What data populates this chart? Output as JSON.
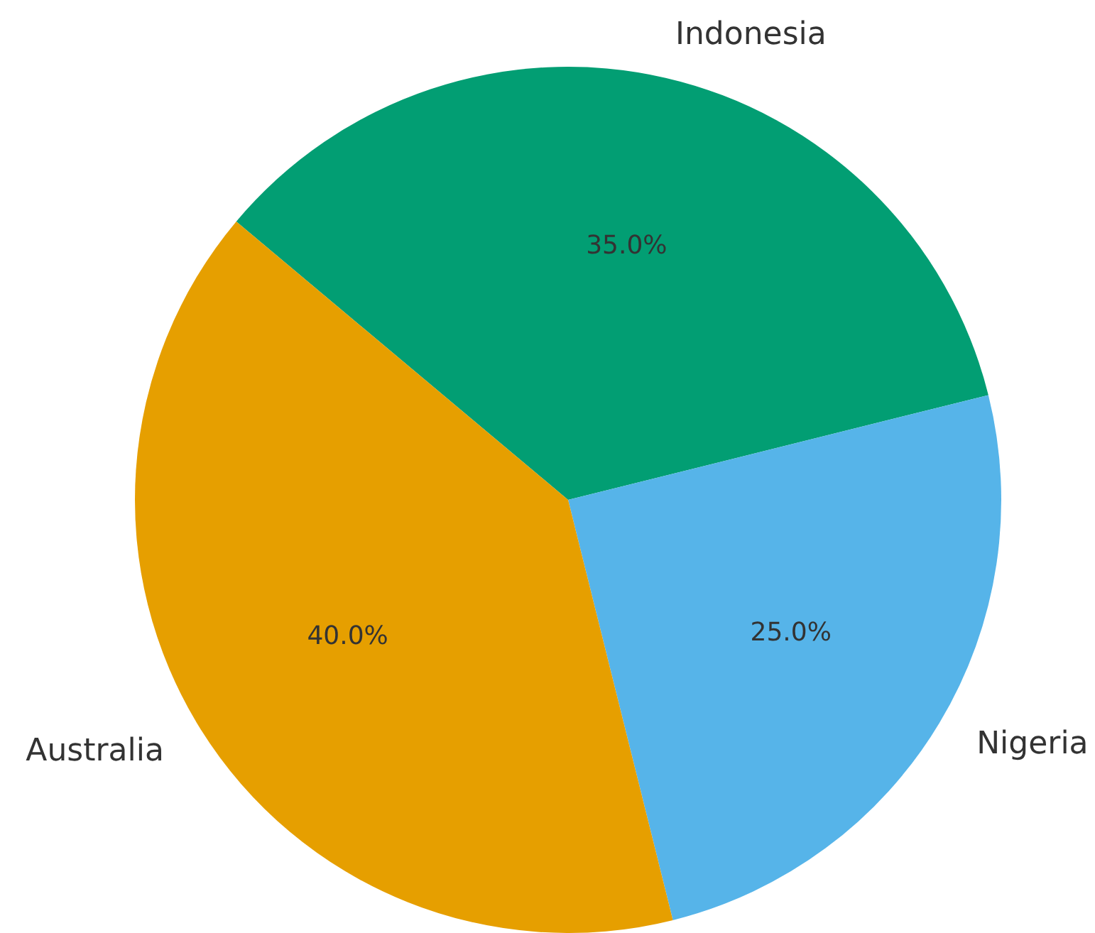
{
  "chart_data": {
    "type": "pie",
    "categories": [
      "Indonesia",
      "Nigeria",
      "Australia"
    ],
    "values": [
      35,
      25,
      40
    ],
    "colors": [
      "#029e73",
      "#56b4e9",
      "#e69f00"
    ],
    "value_labels": [
      "35.0%",
      "25.0%",
      "40.0%"
    ]
  }
}
